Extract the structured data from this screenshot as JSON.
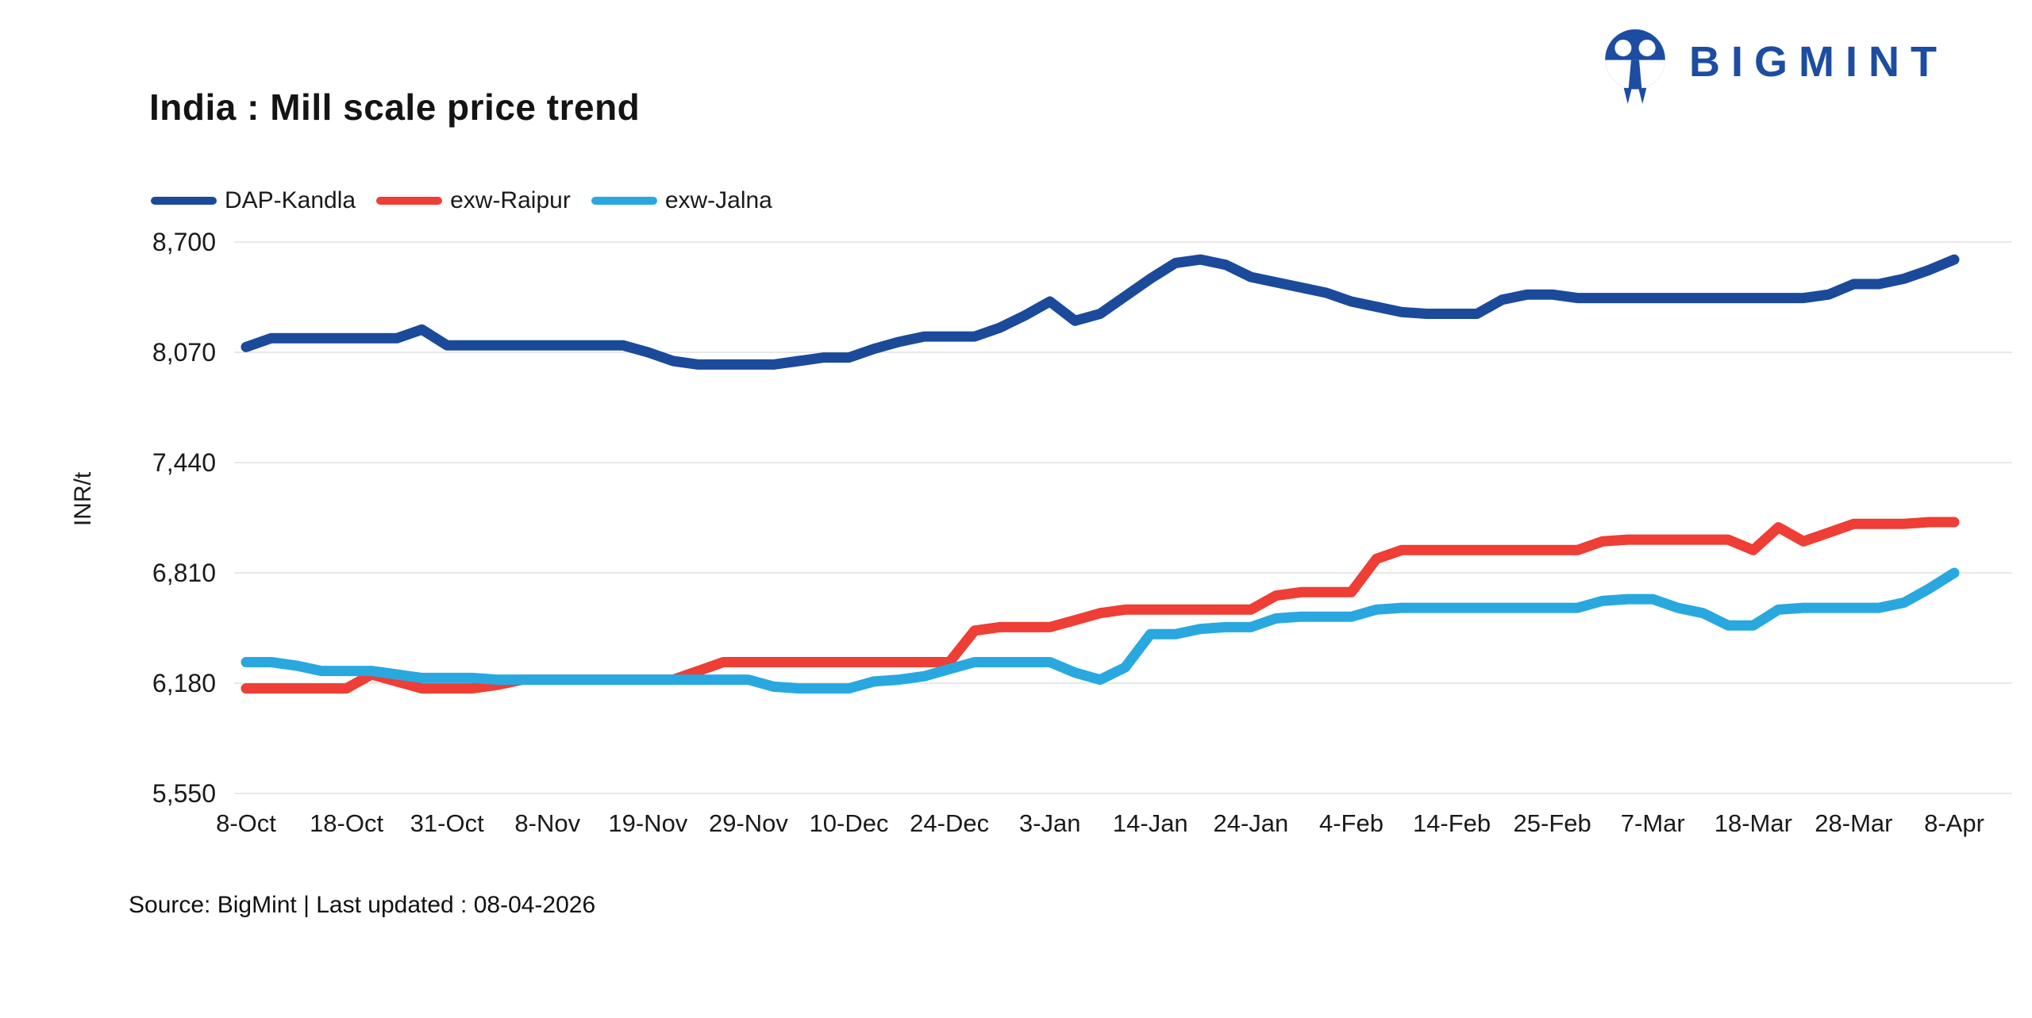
{
  "brand": {
    "wordmark": "BIGMINT",
    "logo_color": "#1d4da1"
  },
  "header": {
    "title": "India : Mill scale price trend"
  },
  "footer": {
    "source_text": "Source: BigMint | Last updated : 08-04-2026"
  },
  "colors": {
    "grid": "#e8e8e8",
    "text": "#1a1a1a"
  },
  "chart_data": {
    "type": "line",
    "title": "India : Mill scale price trend",
    "xlabel": "",
    "ylabel": "INR/t",
    "ylim": [
      5550,
      8700
    ],
    "yticks": [
      8700,
      8070,
      7440,
      6810,
      6180,
      5550
    ],
    "grid": "horizontal",
    "legend_position": "top-left",
    "x_tick_labels": [
      "8-Oct",
      "18-Oct",
      "31-Oct",
      "8-Nov",
      "19-Nov",
      "29-Nov",
      "10-Dec",
      "24-Dec",
      "3-Jan",
      "14-Jan",
      "24-Jan",
      "4-Feb",
      "14-Feb",
      "25-Feb",
      "7-Mar",
      "18-Mar",
      "28-Mar",
      "8-Apr"
    ],
    "points_per_tick": 4,
    "series": [
      {
        "name": "DAP-Kandla",
        "color": "#1b4a9b",
        "values": [
          8100,
          8150,
          8150,
          8150,
          8150,
          8150,
          8150,
          8200,
          8110,
          8110,
          8110,
          8110,
          8110,
          8110,
          8110,
          8110,
          8070,
          8020,
          8000,
          8000,
          8000,
          8000,
          8020,
          8040,
          8040,
          8090,
          8130,
          8160,
          8160,
          8160,
          8210,
          8280,
          8360,
          8250,
          8290,
          8390,
          8490,
          8580,
          8600,
          8570,
          8500,
          8470,
          8440,
          8410,
          8360,
          8330,
          8300,
          8290,
          8290,
          8290,
          8370,
          8400,
          8400,
          8380,
          8380,
          8380,
          8380,
          8380,
          8380,
          8380,
          8380,
          8380,
          8380,
          8400,
          8460,
          8460,
          8490,
          8540,
          8600
        ]
      },
      {
        "name": "exw-Raipur",
        "color": "#ee3e35",
        "values": [
          6150,
          6150,
          6150,
          6150,
          6150,
          6230,
          6190,
          6150,
          6150,
          6150,
          6170,
          6200,
          6200,
          6200,
          6200,
          6200,
          6200,
          6200,
          6250,
          6300,
          6300,
          6300,
          6300,
          6300,
          6300,
          6300,
          6300,
          6300,
          6300,
          6480,
          6500,
          6500,
          6500,
          6540,
          6580,
          6600,
          6600,
          6600,
          6600,
          6600,
          6600,
          6680,
          6700,
          6700,
          6700,
          6890,
          6940,
          6940,
          6940,
          6940,
          6940,
          6940,
          6940,
          6940,
          6990,
          7000,
          7000,
          7000,
          7000,
          7000,
          6940,
          7070,
          6990,
          7040,
          7090,
          7090,
          7090,
          7100,
          7100
        ]
      },
      {
        "name": "exw-Jalna",
        "color": "#29a8e0",
        "values": [
          6300,
          6300,
          6280,
          6250,
          6250,
          6250,
          6230,
          6210,
          6210,
          6210,
          6200,
          6200,
          6200,
          6200,
          6200,
          6200,
          6200,
          6200,
          6200,
          6200,
          6200,
          6160,
          6150,
          6150,
          6150,
          6190,
          6200,
          6220,
          6260,
          6300,
          6300,
          6300,
          6300,
          6240,
          6200,
          6270,
          6460,
          6460,
          6490,
          6500,
          6500,
          6550,
          6560,
          6560,
          6560,
          6600,
          6610,
          6610,
          6610,
          6610,
          6610,
          6610,
          6610,
          6610,
          6650,
          6660,
          6660,
          6610,
          6580,
          6510,
          6510,
          6600,
          6610,
          6610,
          6610,
          6610,
          6640,
          6720,
          6810
        ]
      }
    ]
  }
}
